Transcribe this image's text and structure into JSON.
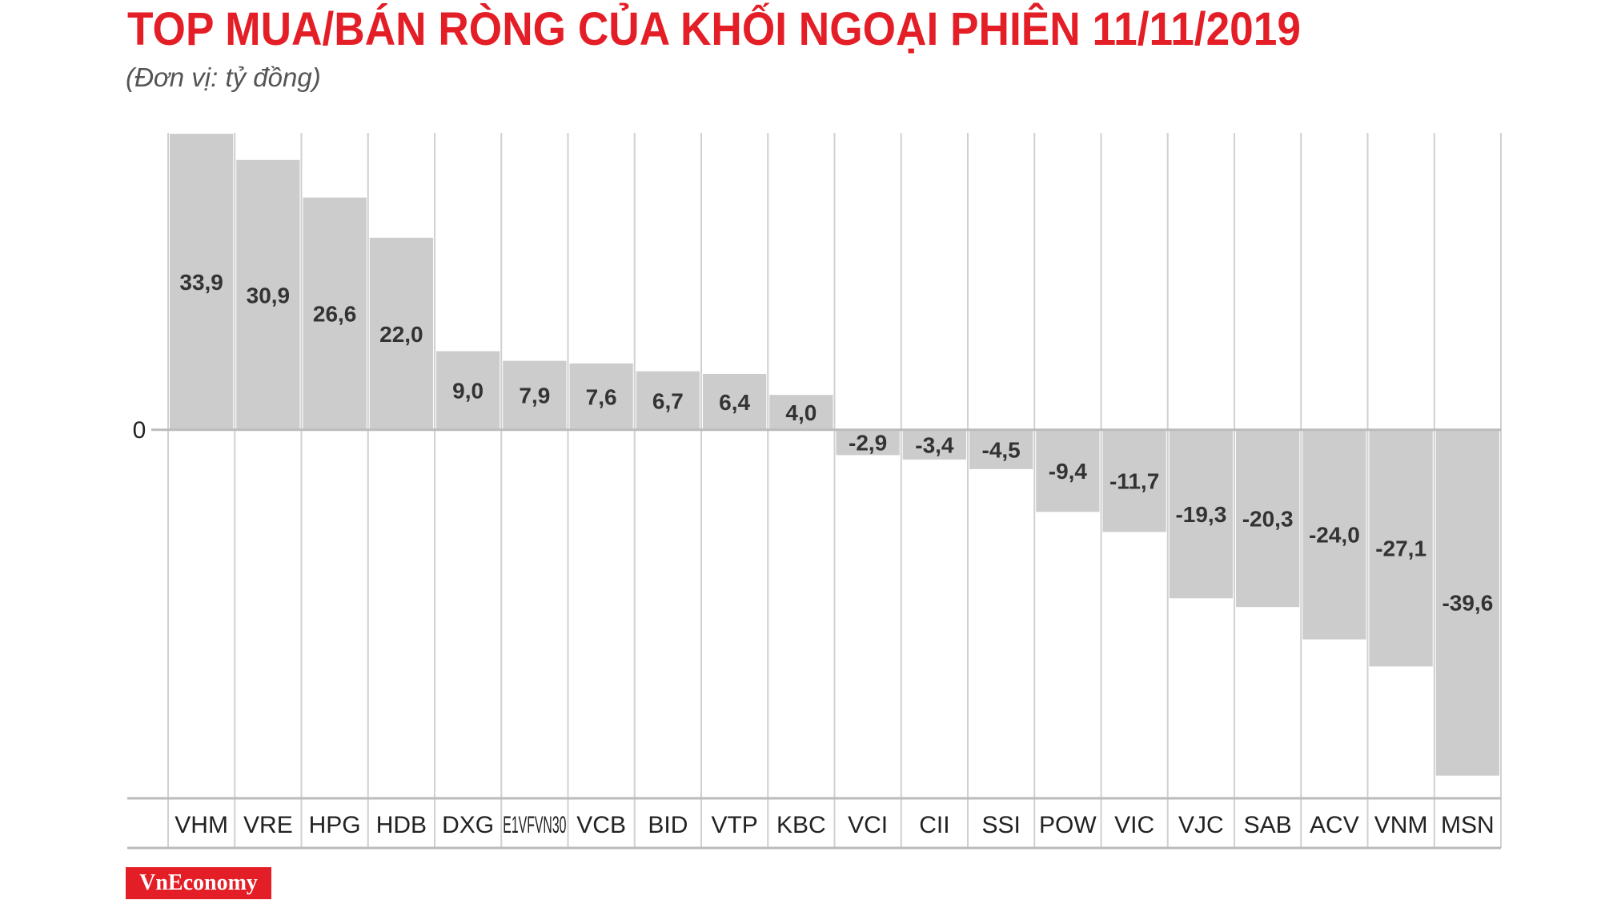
{
  "chart_data": {
    "type": "bar",
    "title": "TOP MUA/BÁN RÒNG CỦA KHỐI NGOẠI PHIÊN 11/11/2019",
    "subtitle": "(Đơn vị: tỷ đồng)",
    "categories": [
      "VHM",
      "VRE",
      "HPG",
      "HDB",
      "DXG",
      "E1VFVN30",
      "VCB",
      "BID",
      "VTP",
      "KBC",
      "VCI",
      "CII",
      "SSI",
      "POW",
      "VIC",
      "VJC",
      "SAB",
      "ACV",
      "VNM",
      "MSN"
    ],
    "values": [
      33.9,
      30.9,
      26.6,
      22.0,
      9.0,
      7.9,
      7.6,
      6.7,
      6.4,
      4.0,
      -2.9,
      -3.4,
      -4.5,
      -9.4,
      -11.7,
      -19.3,
      -20.3,
      -24.0,
      -27.1,
      -39.6
    ],
    "value_labels": [
      "33,9",
      "30,9",
      "26,6",
      "22,0",
      "9,0",
      "7,9",
      "7,6",
      "6,7",
      "6,4",
      "4,0",
      "-2,9",
      "-3,4",
      "-4,5",
      "-9,4",
      "-11,7",
      "-19,3",
      "-20,3",
      "-24,0",
      "-27,1",
      "-39,6"
    ],
    "color": "#cccccc",
    "ylim": [
      -42.2,
      34
    ],
    "yticks": [
      0
    ],
    "source": "VnEconomy"
  }
}
